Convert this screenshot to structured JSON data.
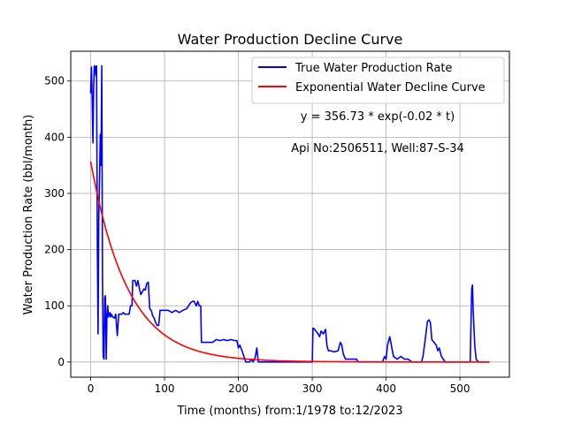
{
  "chart_data": {
    "type": "line",
    "title": "Water Production Decline Curve",
    "xlabel": "Time (months) from:1/1978 to:12/2023",
    "ylabel": "Water Production Rate (bbl/month)",
    "xlim": [
      -27,
      567
    ],
    "ylim": [
      -27,
      553
    ],
    "xticks": [
      0,
      100,
      200,
      300,
      400,
      500
    ],
    "yticks": [
      0,
      100,
      200,
      300,
      400,
      500
    ],
    "grid": true,
    "legend_position": "top-right",
    "annotations": [
      "y = 356.73 * exp(-0.02 * t)",
      "Api No:2506511, Well:87-S-34"
    ],
    "fit": {
      "a": 356.73,
      "b": 0.02,
      "t_max": 540
    },
    "series": [
      {
        "name": "True Water Production Rate",
        "color": "#0000ff",
        "x": [
          0,
          1,
          2,
          3,
          4,
          5,
          6,
          7,
          8,
          9,
          10,
          11,
          12,
          13,
          14,
          15,
          16,
          17,
          18,
          19,
          20,
          21,
          22,
          23,
          24,
          25,
          26,
          27,
          28,
          30,
          32,
          34,
          36,
          38,
          40,
          42,
          44,
          46,
          48,
          50,
          52,
          54,
          56,
          57,
          58,
          60,
          62,
          64,
          66,
          68,
          70,
          72,
          74,
          76,
          78,
          80,
          82,
          84,
          86,
          88,
          90,
          92,
          94,
          96,
          100,
          105,
          110,
          115,
          120,
          125,
          130,
          135,
          138,
          140,
          143,
          145,
          147,
          149,
          150,
          155,
          160,
          165,
          170,
          175,
          180,
          185,
          190,
          195,
          198,
          200,
          202,
          205,
          210,
          215,
          218,
          220,
          223,
          225,
          227,
          230,
          240,
          250,
          260,
          270,
          280,
          290,
          300,
          301,
          302,
          305,
          308,
          310,
          312,
          315,
          318,
          320,
          322,
          325,
          330,
          335,
          338,
          340,
          342,
          345,
          350,
          355,
          360,
          362,
          365,
          370,
          380,
          390,
          395,
          398,
          400,
          402,
          405,
          410,
          415,
          420,
          425,
          430,
          435,
          440,
          445,
          448,
          450,
          452,
          454,
          456,
          458,
          460,
          462,
          465,
          468,
          470,
          472,
          474,
          475,
          480,
          490,
          500,
          510,
          512,
          514,
          515,
          516,
          517,
          518,
          520,
          522,
          525,
          530,
          540
        ],
        "y": [
          478,
          525,
          470,
          390,
          490,
          527,
          525,
          510,
          527,
          200,
          50,
          260,
          330,
          405,
          350,
          527,
          150,
          10,
          5,
          115,
          118,
          5,
          80,
          100,
          80,
          85,
          88,
          80,
          85,
          80,
          78,
          85,
          47,
          85,
          85,
          85,
          88,
          85,
          85,
          85,
          85,
          100,
          100,
          145,
          145,
          145,
          135,
          145,
          130,
          120,
          125,
          130,
          128,
          140,
          142,
          95,
          92,
          82,
          78,
          70,
          65,
          65,
          92,
          92,
          92,
          92,
          88,
          92,
          88,
          92,
          95,
          105,
          108,
          108,
          100,
          108,
          100,
          100,
          35,
          35,
          35,
          35,
          40,
          38,
          40,
          38,
          40,
          38,
          38,
          25,
          30,
          20,
          0,
          0,
          5,
          0,
          10,
          25,
          0,
          0,
          0,
          0,
          0,
          0,
          0,
          0,
          0,
          60,
          60,
          55,
          50,
          45,
          55,
          50,
          58,
          28,
          20,
          20,
          18,
          20,
          35,
          30,
          15,
          5,
          5,
          5,
          5,
          0,
          0,
          0,
          0,
          0,
          0,
          10,
          5,
          30,
          45,
          10,
          5,
          10,
          5,
          5,
          0,
          0,
          0,
          0,
          10,
          30,
          50,
          72,
          75,
          70,
          40,
          35,
          30,
          20,
          25,
          15,
          10,
          0,
          0,
          0,
          0,
          0,
          0,
          70,
          130,
          137,
          90,
          30,
          5,
          0,
          0,
          0
        ]
      },
      {
        "name": "Exponential Water Decline Curve",
        "color": "#ff0000"
      }
    ]
  }
}
